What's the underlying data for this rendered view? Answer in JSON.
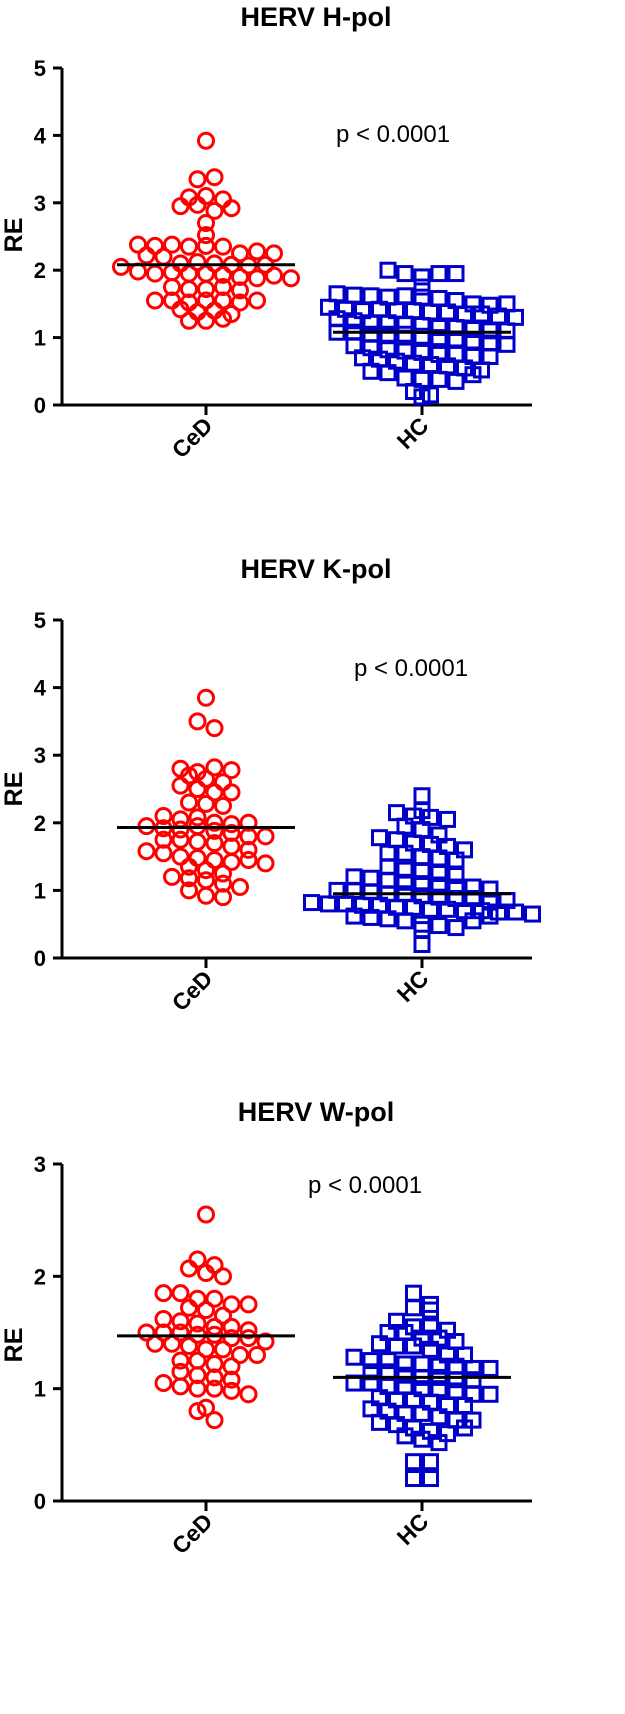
{
  "chart_data": [
    {
      "type": "scatter",
      "title": "HERV H-pol",
      "ylabel": "RE",
      "xlabel": "",
      "categories": [
        "CeD",
        "HC"
      ],
      "ylim": [
        0,
        5
      ],
      "yticks": [
        0,
        1,
        2,
        3,
        4,
        5
      ],
      "annotation": "p < 0.0001",
      "grid": false,
      "median": [
        2.08,
        1.08
      ],
      "series": [
        {
          "category": "CeD",
          "marker": "circle",
          "color": "#ff0000",
          "values": [
            3.92,
            3.35,
            3.38,
            3.08,
            3.1,
            2.95,
            2.97,
            3.05,
            2.88,
            2.92,
            2.7,
            2.52,
            2.38,
            2.36,
            2.38,
            2.35,
            2.36,
            2.35,
            2.25,
            2.22,
            2.28,
            2.25,
            2.2,
            2.1,
            2.12,
            2.1,
            2.08,
            2.07,
            2.08,
            2.05,
            1.98,
            1.95,
            1.97,
            1.95,
            1.95,
            1.93,
            1.9,
            1.88,
            1.92,
            1.88,
            1.75,
            1.72,
            1.72,
            1.75,
            1.7,
            1.55,
            1.55,
            1.52,
            1.55,
            1.55,
            1.52,
            1.55,
            1.42,
            1.38,
            1.4,
            1.35,
            1.25,
            1.25,
            1.28
          ]
        },
        {
          "category": "HC",
          "marker": "square",
          "color": "#0000c8",
          "values": [
            2.0,
            1.95,
            1.9,
            1.95,
            1.95,
            1.75,
            1.65,
            1.63,
            1.62,
            1.6,
            1.62,
            1.6,
            1.58,
            1.55,
            1.5,
            1.48,
            1.5,
            1.45,
            1.42,
            1.4,
            1.42,
            1.4,
            1.4,
            1.38,
            1.38,
            1.35,
            1.35,
            1.32,
            1.3,
            1.28,
            1.25,
            1.22,
            1.22,
            1.2,
            1.18,
            1.15,
            1.15,
            1.12,
            1.1,
            1.1,
            1.08,
            1.08,
            1.05,
            1.05,
            1.05,
            1.02,
            1.0,
            0.98,
            0.95,
            0.92,
            0.9,
            0.88,
            0.85,
            0.82,
            0.8,
            0.78,
            0.75,
            0.75,
            0.72,
            0.72,
            0.7,
            0.68,
            0.65,
            0.62,
            0.6,
            0.58,
            0.55,
            0.52,
            0.5,
            0.48,
            0.4,
            0.38,
            0.38,
            0.35,
            0.2,
            0.15,
            0.12,
            0.45
          ]
        }
      ]
    },
    {
      "type": "scatter",
      "title": "HERV K-pol",
      "ylabel": "RE",
      "xlabel": "",
      "categories": [
        "CeD",
        "HC"
      ],
      "ylim": [
        0,
        5
      ],
      "yticks": [
        0,
        1,
        2,
        3,
        4,
        5
      ],
      "annotation": "p < 0.0001",
      "grid": false,
      "median": [
        1.93,
        0.95
      ],
      "series": [
        {
          "category": "CeD",
          "marker": "circle",
          "color": "#ff0000",
          "values": [
            3.85,
            3.5,
            3.4,
            2.8,
            2.75,
            2.82,
            2.78,
            2.7,
            2.65,
            2.6,
            2.55,
            2.5,
            2.45,
            2.45,
            2.3,
            2.28,
            2.25,
            2.1,
            2.05,
            2.08,
            2.0,
            1.98,
            2.0,
            1.95,
            1.92,
            1.9,
            1.95,
            1.88,
            1.85,
            1.8,
            1.8,
            1.75,
            1.75,
            1.72,
            1.7,
            1.65,
            1.6,
            1.58,
            1.55,
            1.5,
            1.48,
            1.45,
            1.42,
            1.45,
            1.4,
            1.35,
            1.3,
            1.25,
            1.2,
            1.18,
            1.15,
            1.1,
            1.05,
            1.0,
            0.92,
            0.9
          ]
        },
        {
          "category": "HC",
          "marker": "square",
          "color": "#0000c8",
          "values": [
            2.4,
            2.18,
            2.15,
            2.1,
            2.08,
            2.05,
            1.95,
            1.9,
            1.82,
            1.78,
            1.75,
            1.7,
            1.68,
            1.65,
            1.6,
            1.55,
            1.55,
            1.5,
            1.48,
            1.45,
            1.35,
            1.3,
            1.28,
            1.25,
            1.22,
            1.2,
            1.18,
            1.15,
            1.12,
            1.1,
            1.08,
            1.05,
            1.05,
            1.02,
            1.0,
            1.0,
            0.98,
            0.95,
            0.95,
            0.92,
            0.9,
            0.88,
            0.88,
            0.85,
            0.85,
            0.82,
            0.8,
            0.8,
            0.78,
            0.78,
            0.75,
            0.75,
            0.72,
            0.72,
            0.7,
            0.7,
            0.68,
            0.68,
            0.65,
            0.62,
            0.6,
            0.58,
            0.55,
            0.5,
            0.48,
            0.45,
            0.42,
            0.2,
            0.55,
            0.62
          ]
        }
      ]
    },
    {
      "type": "scatter",
      "title": "HERV W-pol",
      "ylabel": "RE",
      "xlabel": "",
      "categories": [
        "CeD",
        "HC"
      ],
      "ylim": [
        0,
        3
      ],
      "yticks": [
        0,
        1,
        2,
        3
      ],
      "annotation": "p < 0.0001",
      "grid": false,
      "median": [
        1.47,
        1.1
      ],
      "series": [
        {
          "category": "CeD",
          "marker": "circle",
          "color": "#ff0000",
          "values": [
            2.55,
            2.15,
            2.1,
            2.07,
            2.03,
            2.0,
            1.85,
            1.85,
            1.8,
            1.8,
            1.75,
            1.75,
            1.72,
            1.7,
            1.65,
            1.62,
            1.6,
            1.58,
            1.55,
            1.55,
            1.52,
            1.5,
            1.5,
            1.5,
            1.48,
            1.48,
            1.45,
            1.45,
            1.42,
            1.4,
            1.4,
            1.38,
            1.35,
            1.35,
            1.3,
            1.3,
            1.25,
            1.25,
            1.22,
            1.2,
            1.15,
            1.12,
            1.1,
            1.08,
            1.05,
            1.02,
            1.0,
            1.0,
            0.98,
            0.95,
            0.83,
            0.8,
            0.72
          ]
        },
        {
          "category": "HC",
          "marker": "square",
          "color": "#0000c8",
          "values": [
            1.85,
            1.75,
            1.72,
            1.7,
            1.6,
            1.55,
            1.55,
            1.52,
            1.5,
            1.5,
            1.45,
            1.45,
            1.42,
            1.4,
            1.38,
            1.38,
            1.35,
            1.3,
            1.3,
            1.28,
            1.25,
            1.25,
            1.22,
            1.22,
            1.2,
            1.2,
            1.18,
            1.18,
            1.15,
            1.15,
            1.12,
            1.1,
            1.1,
            1.08,
            1.08,
            1.05,
            1.05,
            1.02,
            1.02,
            1.0,
            1.0,
            0.98,
            0.95,
            0.95,
            0.92,
            0.9,
            0.9,
            0.88,
            0.85,
            0.82,
            0.8,
            0.78,
            0.78,
            0.75,
            0.72,
            0.72,
            0.7,
            0.68,
            0.65,
            0.62,
            0.6,
            0.58,
            0.55,
            0.52,
            0.35,
            0.35,
            0.2,
            0.2,
            0.65,
            0.85
          ]
        }
      ]
    }
  ]
}
